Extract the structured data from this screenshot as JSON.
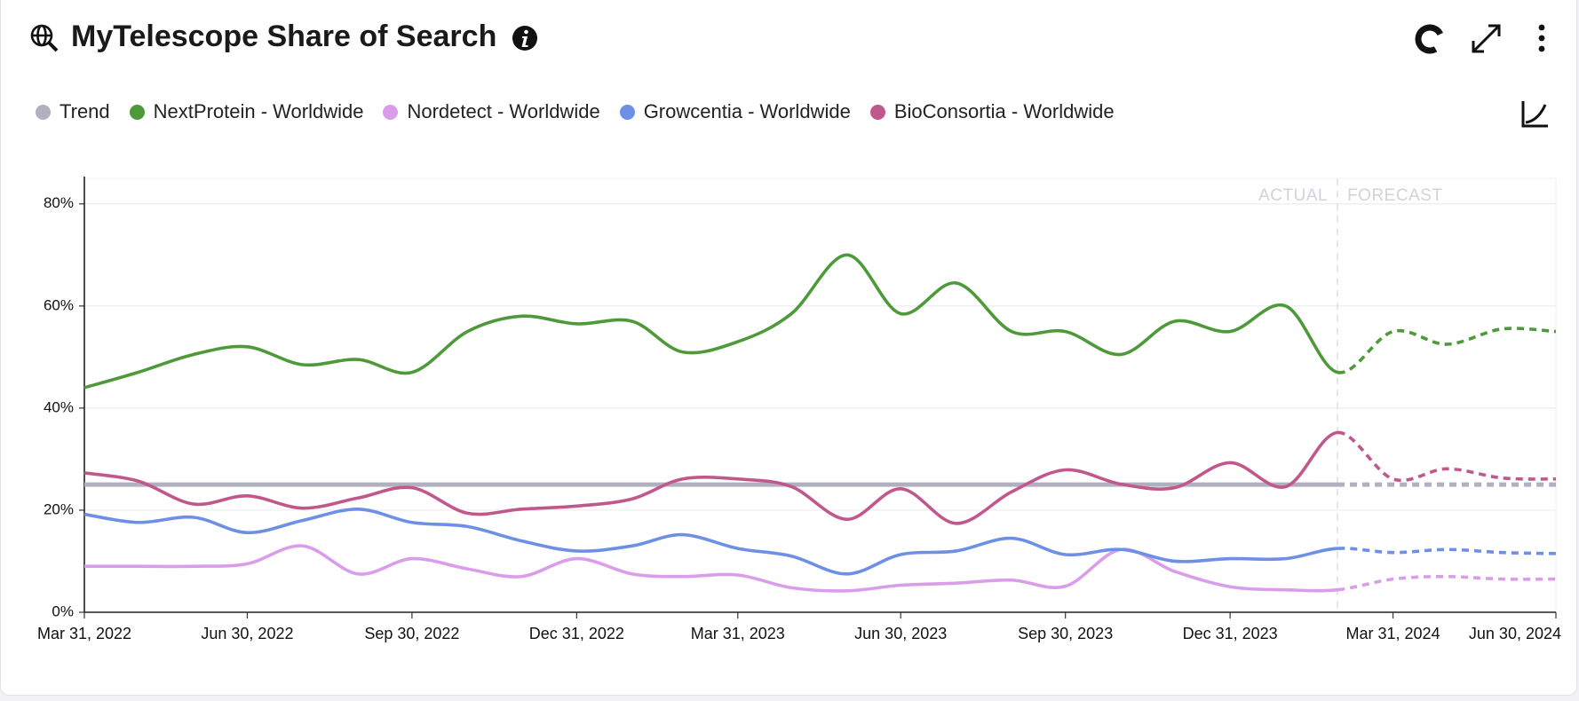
{
  "chart_data": {
    "type": "line",
    "title": "MyTelescope Share of Search",
    "legend_position": "top-left",
    "grid": true,
    "actual_label": "ACTUAL",
    "forecast_label": "FORECAST",
    "forecast_from": "2024-02-29",
    "x": [
      "2022-03-31",
      "2022-04-30",
      "2022-05-31",
      "2022-06-30",
      "2022-07-31",
      "2022-08-31",
      "2022-09-30",
      "2022-10-31",
      "2022-11-30",
      "2022-12-31",
      "2023-01-31",
      "2023-02-28",
      "2023-03-31",
      "2023-04-30",
      "2023-05-31",
      "2023-06-30",
      "2023-07-31",
      "2023-08-31",
      "2023-09-30",
      "2023-10-31",
      "2023-11-30",
      "2023-12-31",
      "2024-01-31",
      "2024-02-29",
      "2024-03-31",
      "2024-04-30",
      "2024-05-31",
      "2024-06-30"
    ],
    "xlim": [
      "2022-03-31",
      "2024-06-30"
    ],
    "xticks": [
      {
        "value": "2022-03-31",
        "label": "Mar 31, 2022"
      },
      {
        "value": "2022-06-30",
        "label": "Jun 30, 2022"
      },
      {
        "value": "2022-09-30",
        "label": "Sep 30, 2022"
      },
      {
        "value": "2022-12-31",
        "label": "Dec 31, 2022"
      },
      {
        "value": "2023-03-31",
        "label": "Mar 31, 2023"
      },
      {
        "value": "2023-06-30",
        "label": "Jun 30, 2023"
      },
      {
        "value": "2023-09-30",
        "label": "Sep 30, 2023"
      },
      {
        "value": "2023-12-31",
        "label": "Dec 31, 2023"
      },
      {
        "value": "2024-03-31",
        "label": "Mar 31, 2024"
      },
      {
        "value": "2024-06-30",
        "label": "Jun 30, 2024"
      }
    ],
    "ylim": [
      0,
      85
    ],
    "yticks": [
      {
        "value": 0,
        "label": "0%"
      },
      {
        "value": 20,
        "label": "20%"
      },
      {
        "value": 40,
        "label": "40%"
      },
      {
        "value": 60,
        "label": "60%"
      },
      {
        "value": 80,
        "label": "80%"
      }
    ],
    "series": [
      {
        "name": "Trend",
        "color": "#b1b0bf",
        "values": [
          25,
          25,
          25,
          25,
          25,
          25,
          25,
          25,
          25,
          25,
          25,
          25,
          25,
          25,
          25,
          25,
          25,
          25,
          25,
          25,
          25,
          25,
          25,
          25,
          25,
          25,
          25,
          25
        ]
      },
      {
        "name": "NextProtein - Worldwide",
        "color": "#4e9a3b",
        "values": [
          44,
          47,
          50.5,
          52,
          48.5,
          49.5,
          47,
          55,
          58,
          56.5,
          57,
          51,
          53,
          58.5,
          70,
          58.5,
          64.5,
          55,
          55,
          50.5,
          57,
          55,
          60,
          47,
          55,
          52.5,
          55.5,
          55
        ]
      },
      {
        "name": "Nordetect - Worldwide",
        "color": "#da9de9",
        "values": [
          9,
          9,
          9,
          9.5,
          13,
          7.5,
          10.5,
          8.5,
          7,
          10.5,
          7.5,
          7,
          7.3,
          4.8,
          4.2,
          5.3,
          5.7,
          6.3,
          5.1,
          12.3,
          8,
          5,
          4.4,
          4.4,
          6.5,
          7,
          6.5,
          6.5
        ]
      },
      {
        "name": "Growcentia - Worldwide",
        "color": "#6d8fe6",
        "values": [
          19.2,
          17.6,
          18.6,
          15.6,
          18,
          20.2,
          17.6,
          16.8,
          14,
          12,
          13,
          15.2,
          12.5,
          11,
          7.5,
          11.3,
          12,
          14.5,
          11.3,
          12.3,
          10,
          10.5,
          10.5,
          12.5,
          11.7,
          12.3,
          11.7,
          11.5
        ]
      },
      {
        "name": "BioConsortia - Worldwide",
        "color": "#c1588b",
        "values": [
          27.3,
          25.7,
          21.2,
          22.8,
          20.4,
          22.4,
          24.4,
          19.4,
          20.2,
          20.8,
          22.2,
          26.1,
          26.1,
          24.6,
          18.2,
          24.2,
          17.4,
          23.6,
          27.9,
          25.1,
          24.4,
          29.3,
          24.6,
          35.2,
          26.1,
          28.1,
          26.3,
          26.1
        ]
      }
    ]
  }
}
